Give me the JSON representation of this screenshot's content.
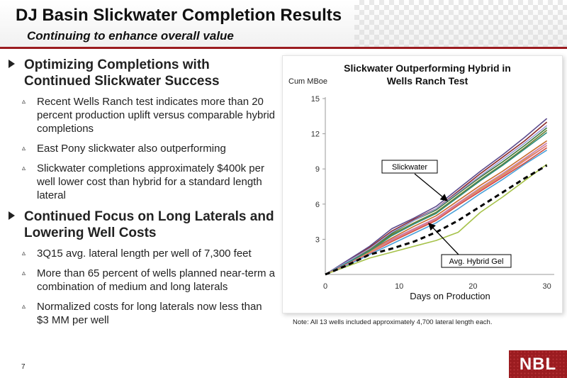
{
  "header": {
    "title": "DJ Basin Slickwater Completion Results",
    "subtitle": "Continuing to enhance overall value"
  },
  "bullets": [
    {
      "text": "Optimizing Completions with Continued Slickwater Success",
      "sub": [
        "Recent Wells Ranch test indicates more than 20 percent production uplift versus comparable hybrid completions",
        "East Pony slickwater also outperforming",
        "Slickwater completions approximately $400k per well lower cost than hybrid for a standard length lateral"
      ]
    },
    {
      "text": "Continued Focus on Long Laterals and Lowering Well Costs",
      "sub": [
        "3Q15 avg. lateral length per well of 7,300 feet",
        "More than 65 percent of wells planned near-term a combination of medium and long laterals",
        "Normalized costs for long laterals now less than $3 MM per well"
      ]
    }
  ],
  "sub_marker": "▵",
  "note": "Note:  All 13 wells included approximately 4,700 lateral length each.",
  "page_number": "7",
  "logo_text": "NBL",
  "chart_data": {
    "type": "line",
    "title": "Slickwater Outperforming Hybrid in Wells Ranch Test",
    "ylabel": "Cum MBoe",
    "xlabel": "Days on Production",
    "xlim": [
      0,
      31
    ],
    "ylim": [
      0,
      15
    ],
    "xticks": [
      0,
      10,
      20,
      30
    ],
    "yticks": [
      3,
      6,
      9,
      12,
      15
    ],
    "annotations": [
      "Slickwater",
      "Avg. Hybrid Gel"
    ],
    "x": [
      0,
      3,
      6,
      9,
      12,
      15,
      18,
      21,
      24,
      27,
      30
    ],
    "series": [
      {
        "color": "#5b4a8c",
        "values": [
          0,
          1.2,
          2.4,
          3.9,
          4.8,
          5.8,
          7.3,
          8.8,
          10.2,
          11.7,
          13.3
        ]
      },
      {
        "color": "#8c2a2a",
        "values": [
          0,
          1.1,
          2.3,
          3.7,
          4.7,
          5.6,
          7.1,
          8.6,
          10.0,
          11.4,
          13.0
        ]
      },
      {
        "color": "#3d7a3a",
        "values": [
          0,
          1.0,
          2.2,
          3.5,
          4.6,
          5.5,
          6.9,
          8.3,
          9.6,
          11.0,
          12.5
        ]
      },
      {
        "color": "#6a7d2e",
        "values": [
          0,
          1.0,
          2.1,
          3.4,
          4.4,
          5.3,
          6.7,
          8.1,
          9.4,
          10.8,
          12.3
        ]
      },
      {
        "color": "#c96a2a",
        "values": [
          0,
          0.9,
          2.0,
          3.1,
          4.1,
          5.0,
          6.3,
          7.6,
          8.8,
          10.1,
          11.4
        ]
      },
      {
        "color": "#c77ab0",
        "values": [
          0,
          0.9,
          1.9,
          3.0,
          3.9,
          4.8,
          6.1,
          7.4,
          8.6,
          9.9,
          11.2
        ]
      },
      {
        "color": "#d24a3a",
        "values": [
          0,
          0.8,
          1.8,
          2.8,
          3.7,
          4.6,
          5.9,
          7.1,
          8.3,
          9.5,
          10.8
        ]
      },
      {
        "color": "#4aa0d8",
        "values": [
          0,
          0.8,
          1.7,
          2.6,
          3.5,
          4.4,
          5.6,
          6.9,
          8.1,
          9.4,
          10.6
        ]
      },
      {
        "color": "#e0a040",
        "values": [
          0,
          0.9,
          1.9,
          2.9,
          3.8,
          4.7,
          6.0,
          7.3,
          8.5,
          9.8,
          11.0
        ]
      },
      {
        "color": "#9c9cd8",
        "values": [
          0,
          1.1,
          2.2,
          3.6,
          4.6,
          5.6,
          7.0,
          8.4,
          9.8,
          11.2,
          12.7
        ]
      },
      {
        "color": "#2e8c7a",
        "values": [
          0,
          1.0,
          2.0,
          3.3,
          4.3,
          5.2,
          6.6,
          8.0,
          9.3,
          10.7,
          12.1
        ]
      },
      {
        "color": "#e07a8a",
        "values": [
          0,
          0.9,
          1.8,
          2.9,
          3.8,
          4.7,
          6.0,
          7.2,
          8.4,
          9.7,
          11.0
        ]
      },
      {
        "color": "#a6c24a",
        "values": [
          0,
          0.7,
          1.4,
          1.9,
          2.4,
          2.9,
          3.6,
          5.3,
          6.6,
          8.0,
          9.4
        ]
      }
    ],
    "hybrid": {
      "color": "#000000",
      "dashed": true,
      "values": [
        0,
        0.8,
        1.7,
        2.2,
        2.8,
        3.6,
        4.6,
        5.8,
        7.0,
        8.2,
        9.3
      ]
    }
  }
}
